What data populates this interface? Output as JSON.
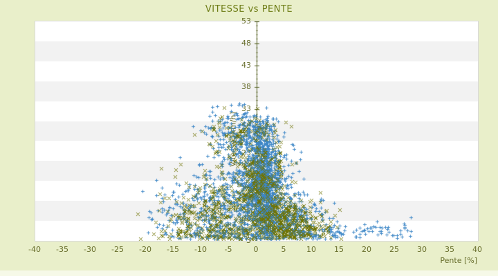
{
  "title": "VITESSE vs PENTE",
  "colors": {
    "page_background": "#e9efca",
    "plot_band_even": "#ffffff",
    "plot_band_odd": "#f2f2f2",
    "plot_border": "#d8d8d8",
    "axis_line": "#515c1c",
    "tick_text": "#666c2a",
    "title_text": "#6d7c15",
    "series_blue": "#3d87c7",
    "series_olive": "#6f7301"
  },
  "chart_data": {
    "type": "scatter",
    "title": "VITESSE vs PENTE",
    "xlabel": "Pente [%]",
    "ylabel": "Vitesse [km/h]",
    "xlim": [
      -40,
      40
    ],
    "ylim": [
      3,
      53
    ],
    "x_ticks": [
      -40,
      -35,
      -30,
      -25,
      -20,
      -15,
      -10,
      -5,
      0,
      5,
      10,
      15,
      20,
      25,
      30,
      35,
      40
    ],
    "y_ticks": [
      3,
      8,
      13,
      18,
      23,
      28,
      33,
      38,
      43,
      48,
      53
    ],
    "grid": "horizontal-bands",
    "background_bands": {
      "count": 11,
      "colors": [
        "#ffffff",
        "#f2f2f2"
      ]
    },
    "legend": "none",
    "zero_axis_line_x": 0,
    "seed": 42,
    "series": [
      {
        "name": "series-blue",
        "color": "#3d87c7",
        "marker": "plus",
        "components": [
          {
            "n": 950,
            "p": {
              "dist": "normal",
              "mu": 1.2,
              "sigma": 1.4,
              "min": -2.6,
              "max": 5.5
            },
            "v": {
              "dist": "normal",
              "mu": 16,
              "sigma": 7,
              "min": 3.4,
              "max": 31.5
            }
          },
          {
            "n": 520,
            "p": {
              "dist": "normal",
              "mu": -0.5,
              "sigma": 3.6,
              "min": -13,
              "max": 9
            },
            "v": {
              "dist": "normal",
              "mu": 15,
              "sigma": 6.5,
              "min": 3.4,
              "max": 32.5
            }
          },
          {
            "n": 240,
            "p": {
              "dist": "normal",
              "mu": -2.5,
              "sigma": 3.0,
              "min": -12,
              "max": 4
            },
            "v": {
              "dist": "normal",
              "mu": 27.5,
              "sigma": 2.9,
              "min": 20,
              "max": 34.6
            }
          },
          {
            "n": 320,
            "p": {
              "dist": "normal",
              "mu": -8.5,
              "sigma": 4.8,
              "min": -26,
              "max": -1
            },
            "v": {
              "dist": "normal",
              "mu": 9,
              "sigma": 4.6,
              "min": 3.4,
              "max": 24
            }
          },
          {
            "n": 300,
            "p": {
              "dist": "normal",
              "mu": 5.5,
              "sigma": 3.4,
              "min": 0.5,
              "max": 16
            },
            "v": {
              "dist": "normal",
              "mu": 7.5,
              "sigma": 3.2,
              "min": 3.4,
              "max": 16
            }
          },
          {
            "n": 70,
            "p": {
              "dist": "uniform",
              "min": 13,
              "max": 28
            },
            "v": {
              "dist": "normal",
              "mu": 5,
              "sigma": 1.4,
              "min": 3.4,
              "max": 8.5
            }
          },
          {
            "n": 190,
            "p": {
              "dist": "normal",
              "mu": -1,
              "sigma": 7.5,
              "min": -24,
              "max": 16
            },
            "v": {
              "dist": "normal",
              "mu": 4.6,
              "sigma": 1.2,
              "min": 3.4,
              "max": 8
            }
          }
        ]
      },
      {
        "name": "series-olive",
        "color": "#6f7301",
        "marker": "x",
        "components": [
          {
            "n": 250,
            "p": {
              "dist": "normal",
              "mu": 0.8,
              "sigma": 2.3,
              "min": -4.5,
              "max": 6.5
            },
            "v": {
              "dist": "normal",
              "mu": 15,
              "sigma": 6.5,
              "min": 3.4,
              "max": 31
            }
          },
          {
            "n": 170,
            "p": {
              "dist": "normal",
              "mu": -1.5,
              "sigma": 4.2,
              "min": -14,
              "max": 8.5
            },
            "v": {
              "dist": "normal",
              "mu": 14,
              "sigma": 6,
              "min": 3.4,
              "max": 30
            }
          },
          {
            "n": 95,
            "p": {
              "dist": "normal",
              "mu": -3,
              "sigma": 3.4,
              "min": -13,
              "max": 3.5
            },
            "v": {
              "dist": "normal",
              "mu": 26.5,
              "sigma": 3,
              "min": 19,
              "max": 33.8
            }
          },
          {
            "n": 210,
            "p": {
              "dist": "normal",
              "mu": -8.5,
              "sigma": 5,
              "min": -25.5,
              "max": -0.5
            },
            "v": {
              "dist": "normal",
              "mu": 8.5,
              "sigma": 4.4,
              "min": 3.4,
              "max": 22
            }
          },
          {
            "n": 300,
            "p": {
              "dist": "normal",
              "mu": 6,
              "sigma": 3.4,
              "min": 0.5,
              "max": 15.8
            },
            "v": {
              "dist": "normal",
              "mu": 7,
              "sigma": 2.9,
              "min": 3.4,
              "max": 14
            }
          },
          {
            "n": 110,
            "p": {
              "dist": "normal",
              "mu": -2,
              "sigma": 8.5,
              "min": -25,
              "max": 14
            },
            "v": {
              "dist": "normal",
              "mu": 4.5,
              "sigma": 1.3,
              "min": 3.4,
              "max": 9
            }
          }
        ]
      }
    ]
  }
}
